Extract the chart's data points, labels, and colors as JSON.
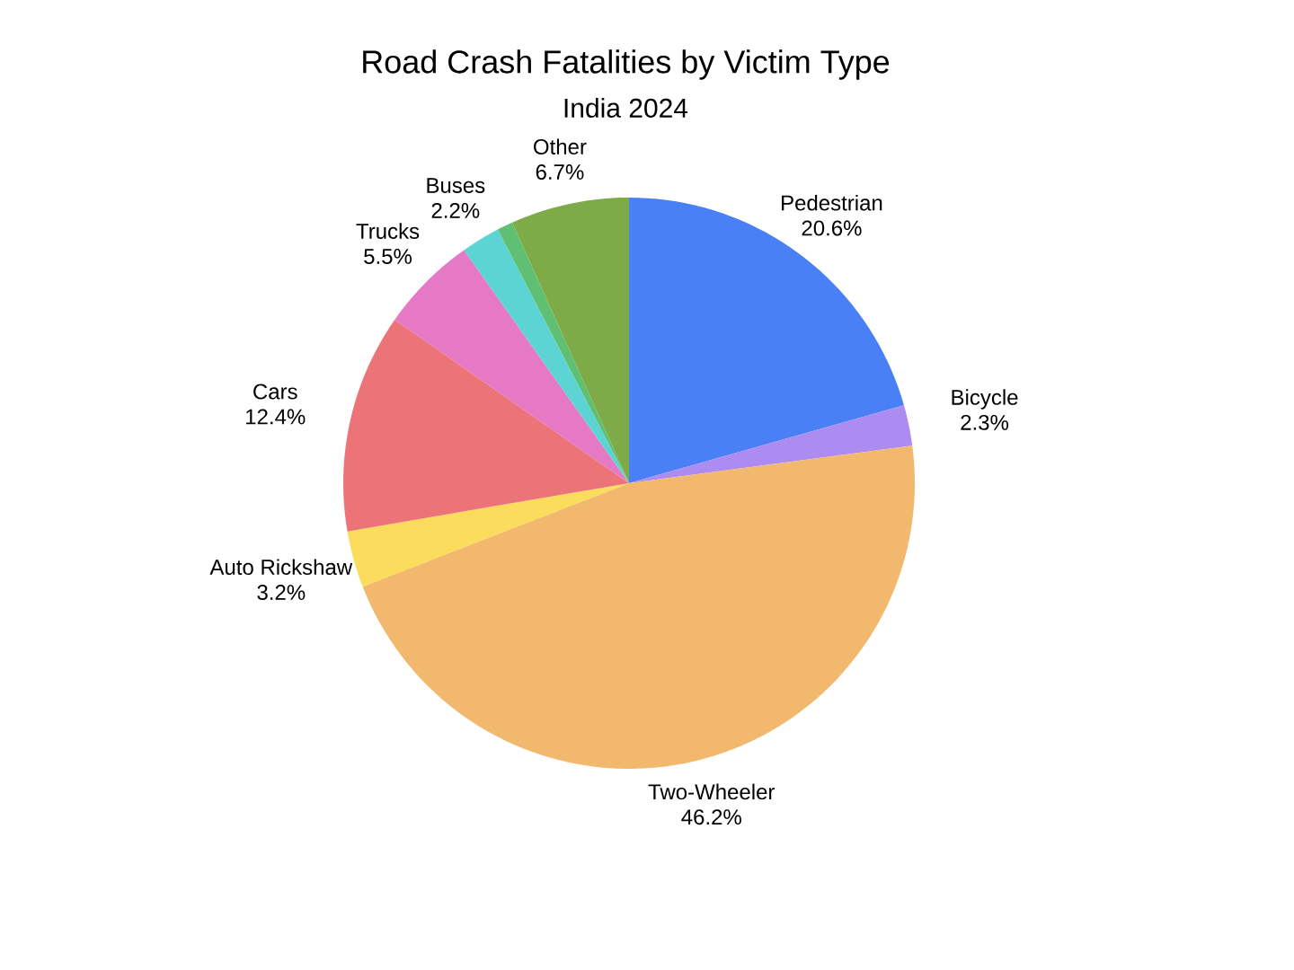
{
  "chart_data": {
    "type": "pie",
    "title": "Road Crash Fatalities by Victim Type",
    "subtitle": "India 2024",
    "categories": [
      "Pedestrian",
      "Bicycle",
      "Two-Wheeler",
      "Auto Rickshaw",
      "Cars",
      "Trucks",
      "Buses",
      null,
      "Other"
    ],
    "values": [
      20.6,
      2.3,
      46.2,
      3.2,
      12.4,
      5.5,
      2.2,
      0.9,
      6.7
    ],
    "value_labels": [
      "20.6%",
      "2.3%",
      "46.2%",
      "3.2%",
      "12.4%",
      "5.5%",
      "2.2%",
      null,
      "6.7%"
    ],
    "colors": [
      "#4a80f5",
      "#ad8cf2",
      "#f2b86e",
      "#fcdc5c",
      "#ec7479",
      "#e679c4",
      "#5cd4d4",
      "#5fbf72",
      "#7eab47"
    ]
  }
}
